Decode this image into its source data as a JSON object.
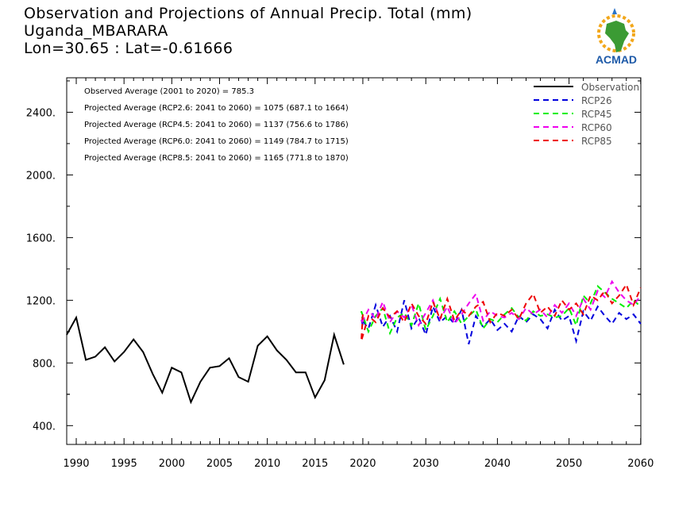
{
  "header": {
    "title": "Observation and Projections of Annual Precip. Total (mm)",
    "station": "Uganda_MBARARA",
    "coords": "Lon=30.65 : Lat=-0.61666"
  },
  "logo": {
    "text": "ACMAD",
    "icon": "africa-sun-logo"
  },
  "colors": {
    "observation": "#000000",
    "rcp26": "#0000dd",
    "rcp45": "#00ee00",
    "rcp60": "#ee00ee",
    "rcp85": "#ee0000"
  },
  "annotations": [
    "Observed Average (2001 to 2020) = 785.3",
    "Projected Average (RCP2.6: 2041 to 2060) = 1075 (687.1 to 1664)",
    "Projected Average (RCP4.5: 2041 to 2060) = 1137 (756.6 to 1786)",
    "Projected Average (RCP6.0: 2041 to 2060) = 1149 (784.7 to 1715)",
    "Projected Average (RCP8.5: 2041 to 2060) = 1165 (771.8 to 1870)"
  ],
  "chart_data": {
    "type": "line",
    "title": "Observation and Projections of Annual Precip. Total (mm)",
    "xlabel": "",
    "ylabel": "",
    "ylim": [
      280,
      2620
    ],
    "y_ticks": [
      "400.",
      "800.",
      "1200.",
      "1600.",
      "2000.",
      "2400."
    ],
    "y_tick_values": [
      400,
      800,
      1200,
      1600,
      2000,
      2400
    ],
    "x_ticks_early": [
      1990,
      1995,
      2000,
      2005,
      2010,
      2015,
      2020
    ],
    "x_ticks_late": [
      2030,
      2040,
      2050,
      2060
    ],
    "x_break": 2020,
    "legend_position": "top-right",
    "grid": false,
    "series": [
      {
        "name": "Observation",
        "style": "solid",
        "x": [
          1989,
          1990,
          1991,
          1992,
          1993,
          1994,
          1995,
          1996,
          1997,
          1998,
          1999,
          2000,
          2001,
          2002,
          2003,
          2004,
          2005,
          2006,
          2007,
          2008,
          2009,
          2010,
          2011,
          2012,
          2013,
          2014,
          2015,
          2016,
          2017,
          2018,
          2019,
          2020
        ],
        "values": [
          980,
          1090,
          820,
          840,
          900,
          810,
          870,
          950,
          870,
          730,
          610,
          770,
          740,
          550,
          680,
          770,
          780,
          830,
          710,
          680,
          910,
          970,
          880,
          820,
          740,
          740,
          580,
          690,
          980,
          790,
          null,
          null
        ]
      },
      {
        "name": "RCP26",
        "style": "dashed",
        "x": [
          2020,
          2021,
          2022,
          2023,
          2024,
          2025,
          2026,
          2027,
          2028,
          2029,
          2030,
          2031,
          2032,
          2033,
          2034,
          2035,
          2036,
          2037,
          2038,
          2039,
          2040,
          2041,
          2042,
          2043,
          2044,
          2045,
          2046,
          2047,
          2048,
          2049,
          2050,
          2051,
          2052,
          2053,
          2054,
          2055,
          2056,
          2057,
          2058,
          2059,
          2060
        ],
        "values": [
          1040,
          1080,
          1020,
          1170,
          1030,
          1100,
          1000,
          1200,
          1020,
          1090,
          980,
          1160,
          1060,
          1100,
          1050,
          1140,
          920,
          1100,
          1030,
          1080,
          1010,
          1050,
          1000,
          1100,
          1060,
          1110,
          1080,
          1020,
          1140,
          1070,
          1100,
          940,
          1130,
          1070,
          1160,
          1100,
          1050,
          1120,
          1080,
          1110,
          1050
        ]
      },
      {
        "name": "RCP45",
        "style": "dashed",
        "x": [
          2020,
          2021,
          2022,
          2023,
          2024,
          2025,
          2026,
          2027,
          2028,
          2029,
          2030,
          2031,
          2032,
          2033,
          2034,
          2035,
          2036,
          2037,
          2038,
          2039,
          2040,
          2041,
          2042,
          2043,
          2044,
          2045,
          2046,
          2047,
          2048,
          2049,
          2050,
          2051,
          2052,
          2053,
          2054,
          2055,
          2056,
          2057,
          2058,
          2059,
          2060
        ],
        "values": [
          1060,
          1130,
          1000,
          1100,
          1150,
          990,
          1090,
          1120,
          1040,
          1180,
          1010,
          1100,
          1210,
          1060,
          1130,
          1050,
          1100,
          1140,
          1020,
          1080,
          1060,
          1110,
          1150,
          1090,
          1070,
          1130,
          1100,
          1110,
          1090,
          1100,
          1150,
          1040,
          1230,
          1180,
          1290,
          1250,
          1210,
          1180,
          1150,
          1200,
          1160
        ]
      },
      {
        "name": "RCP60",
        "style": "dashed",
        "x": [
          2020,
          2021,
          2022,
          2023,
          2024,
          2025,
          2026,
          2027,
          2028,
          2029,
          2030,
          2031,
          2032,
          2033,
          2034,
          2035,
          2036,
          2037,
          2038,
          2039,
          2040,
          2041,
          2042,
          2043,
          2044,
          2045,
          2046,
          2047,
          2048,
          2049,
          2050,
          2051,
          2052,
          2053,
          2054,
          2055,
          2056,
          2057,
          2058,
          2059,
          2060
        ],
        "values": [
          1100,
          1050,
          1140,
          1080,
          1190,
          1060,
          1130,
          1090,
          1170,
          1040,
          1120,
          1200,
          1080,
          1160,
          1050,
          1110,
          1180,
          1240,
          1070,
          1130,
          1100,
          1090,
          1120,
          1080,
          1150,
          1110,
          1140,
          1090,
          1170,
          1120,
          1180,
          1100,
          1210,
          1140,
          1260,
          1220,
          1320,
          1250,
          1200,
          1170,
          1230
        ]
      },
      {
        "name": "RCP85",
        "style": "dashed",
        "x": [
          2020,
          2021,
          2022,
          2023,
          2024,
          2025,
          2026,
          2027,
          2028,
          2029,
          2030,
          2031,
          2032,
          2033,
          2034,
          2035,
          2036,
          2037,
          2038,
          2039,
          2040,
          2041,
          2042,
          2043,
          2044,
          2045,
          2046,
          2047,
          2048,
          2049,
          2050,
          2051,
          2052,
          2053,
          2054,
          2055,
          2056,
          2057,
          2058,
          2059,
          2060
        ],
        "values": [
          1110,
          940,
          1100,
          1060,
          1150,
          1090,
          1130,
          1060,
          1180,
          1100,
          1050,
          1190,
          1080,
          1210,
          1070,
          1140,
          1100,
          1160,
          1190,
          1060,
          1120,
          1100,
          1140,
          1080,
          1180,
          1240,
          1120,
          1160,
          1100,
          1200,
          1140,
          1180,
          1110,
          1230,
          1200,
          1260,
          1180,
          1230,
          1300,
          1170,
          1280
        ]
      }
    ]
  }
}
